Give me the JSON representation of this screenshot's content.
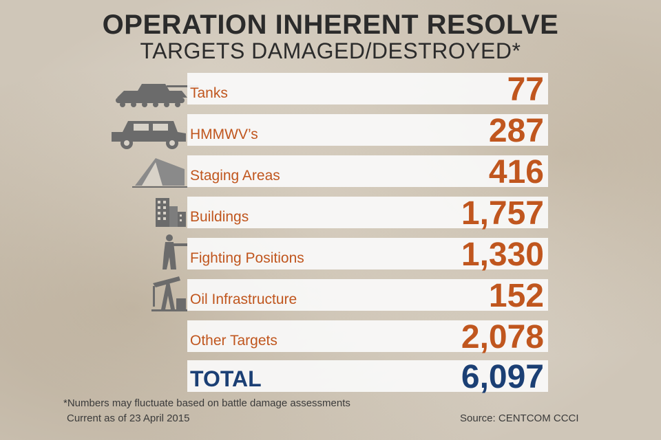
{
  "title": "OPERATION INHERENT RESOLVE",
  "subtitle": "TARGETS DAMAGED/DESTROYED*",
  "rows": [
    {
      "label": "Tanks",
      "value": "77",
      "icon": "tank-icon"
    },
    {
      "label": "HMMWV’s",
      "value": "287",
      "icon": "humvee-icon"
    },
    {
      "label": "Staging Areas",
      "value": "416",
      "icon": "tent-icon"
    },
    {
      "label": "Buildings",
      "value": "1,757",
      "icon": "buildings-icon"
    },
    {
      "label": "Fighting Positions",
      "value": "1,330",
      "icon": "soldier-icon"
    },
    {
      "label": "Oil Infrastructure",
      "value": "152",
      "icon": "oil-pump-icon"
    },
    {
      "label": "Other Targets",
      "value": "2,078",
      "icon": ""
    }
  ],
  "total": {
    "label": "TOTAL",
    "value": "6,097"
  },
  "footnote": "*Numbers may fluctuate based on battle damage assessments",
  "as_of": "Current as of 23 April 2015",
  "source": "Source: CENTCOM CCCI",
  "colors": {
    "accent": "#c0561e",
    "total": "#1b3f74",
    "icon": "#6b6b6b"
  }
}
